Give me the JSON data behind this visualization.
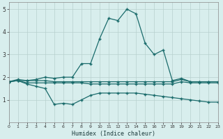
{
  "xlabel": "Humidex (Indice chaleur)",
  "x": [
    0,
    1,
    2,
    3,
    4,
    5,
    6,
    7,
    8,
    9,
    10,
    11,
    12,
    13,
    14,
    15,
    16,
    17,
    18,
    19,
    20,
    21,
    22,
    23
  ],
  "line_peak": [
    1.8,
    1.85,
    1.85,
    1.9,
    2.0,
    1.95,
    2.0,
    2.0,
    2.6,
    2.6,
    3.7,
    4.6,
    4.5,
    5.0,
    4.8,
    3.5,
    3.0,
    3.2,
    1.85,
    1.95,
    1.8,
    1.8,
    1.8,
    1.8
  ],
  "line_upper": [
    1.8,
    1.9,
    1.85,
    1.85,
    1.85,
    1.8,
    1.8,
    1.8,
    1.8,
    1.8,
    1.8,
    1.8,
    1.8,
    1.8,
    1.8,
    1.8,
    1.8,
    1.8,
    1.8,
    1.9,
    1.8,
    1.8,
    1.8,
    1.8
  ],
  "line_mid": [
    1.8,
    1.85,
    1.75,
    1.75,
    1.75,
    1.75,
    1.75,
    1.75,
    1.75,
    1.7,
    1.7,
    1.7,
    1.7,
    1.7,
    1.7,
    1.7,
    1.7,
    1.7,
    1.7,
    1.8,
    1.75,
    1.75,
    1.75,
    1.75
  ],
  "line_low": [
    1.8,
    1.85,
    1.7,
    1.6,
    1.5,
    0.8,
    0.85,
    0.8,
    1.0,
    1.2,
    1.3,
    1.3,
    1.3,
    1.3,
    1.3,
    1.25,
    1.2,
    1.15,
    1.1,
    1.05,
    1.0,
    0.95,
    0.9,
    0.9
  ],
  "bg_color": "#d8eeed",
  "grid_color": "#b8d0ce",
  "line_color": "#1a6b6b",
  "xlim": [
    0,
    23
  ],
  "ylim": [
    0,
    5.3
  ],
  "yticks": [
    1,
    2,
    3,
    4,
    5
  ],
  "xticks": [
    0,
    1,
    2,
    3,
    4,
    5,
    6,
    7,
    8,
    9,
    10,
    11,
    12,
    13,
    14,
    15,
    16,
    17,
    18,
    19,
    20,
    21,
    22,
    23
  ]
}
